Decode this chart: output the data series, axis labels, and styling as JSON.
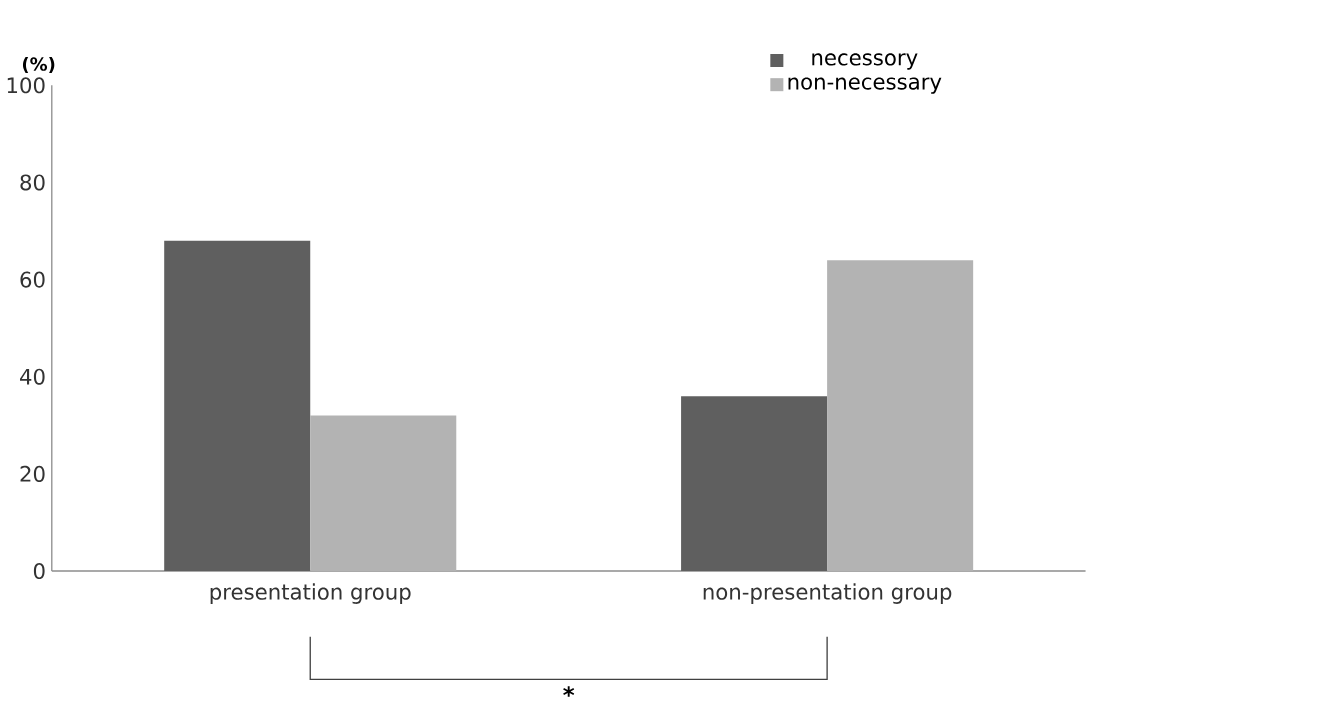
{
  "chart_data": {
    "type": "bar",
    "ylabel": "(%)",
    "categories": [
      "presentation group",
      "non-presentation group"
    ],
    "series": [
      {
        "name": "necessory",
        "color": "#5f5f5f",
        "values": [
          68,
          36
        ]
      },
      {
        "name": "non-necessary",
        "color": "#b3b3b3",
        "values": [
          32,
          64
        ]
      }
    ],
    "ylim": [
      0,
      100
    ],
    "yticks": [
      0,
      20,
      40,
      60,
      80,
      100
    ],
    "legend": "top right",
    "annotations": [
      "*"
    ]
  }
}
